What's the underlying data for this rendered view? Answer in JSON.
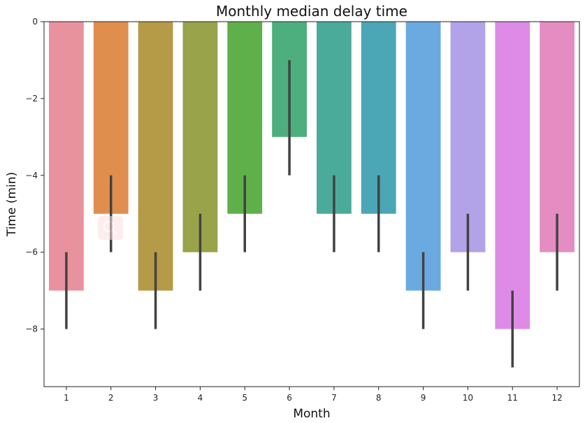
{
  "chart_data": {
    "type": "bar",
    "title": "Monthly median delay time",
    "xlabel": "Month",
    "ylabel": "Time (min)",
    "categories": [
      "1",
      "2",
      "3",
      "4",
      "5",
      "6",
      "7",
      "8",
      "9",
      "10",
      "11",
      "12"
    ],
    "values": [
      -7,
      -5,
      -7,
      -6,
      -5,
      -3,
      -5,
      -5,
      -7,
      -6,
      -8,
      -6
    ],
    "error_bars": [
      [
        -8,
        -6
      ],
      [
        -6,
        -4
      ],
      [
        -8,
        -6
      ],
      [
        -7,
        -5
      ],
      [
        -6,
        -4
      ],
      [
        -4,
        -1
      ],
      [
        -6,
        -4
      ],
      [
        -6,
        -4
      ],
      [
        -8,
        -6
      ],
      [
        -7,
        -5
      ],
      [
        -9,
        -7
      ],
      [
        -7,
        -5
      ]
    ],
    "colors": [
      "#e8929d",
      "#e08e4e",
      "#b59a47",
      "#98a34a",
      "#5fb04a",
      "#4daf7e",
      "#4aab9a",
      "#4ba6b5",
      "#6aaae0",
      "#b2a3e8",
      "#dd8be6",
      "#e58dc2"
    ],
    "yticks": [
      0,
      -2,
      -4,
      -6,
      -8
    ],
    "ytick_labels": [
      "0",
      "−2",
      "−4",
      "−6",
      "−8"
    ],
    "ylim": [
      -9.5,
      0
    ],
    "grid": false,
    "errorbar_color": "#424242"
  },
  "overlay": {
    "icon": "zoom-icon"
  }
}
